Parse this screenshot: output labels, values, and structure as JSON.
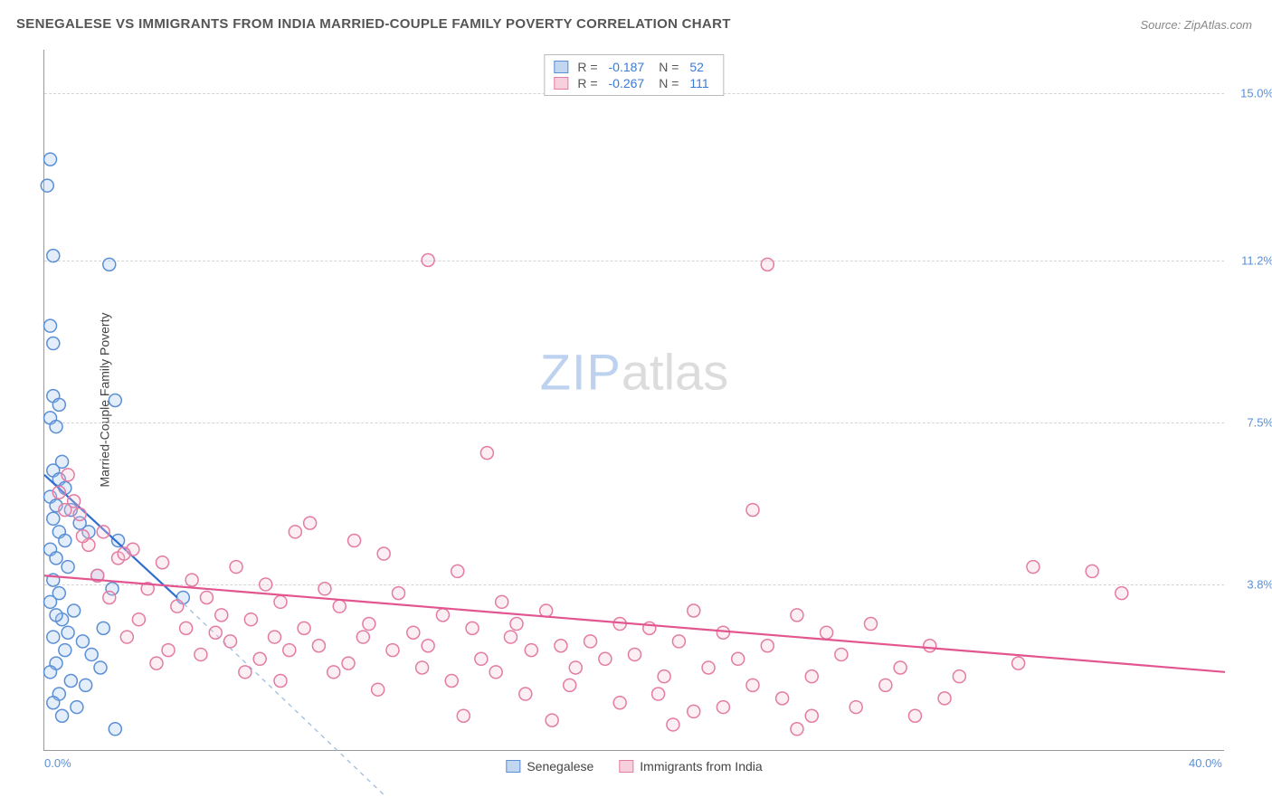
{
  "title": "SENEGALESE VS IMMIGRANTS FROM INDIA MARRIED-COUPLE FAMILY POVERTY CORRELATION CHART",
  "source": "Source: ZipAtlas.com",
  "ylabel": "Married-Couple Family Poverty",
  "watermark_zip": "ZIP",
  "watermark_atlas": "atlas",
  "chart": {
    "type": "scatter",
    "xlim": [
      0,
      40
    ],
    "ylim": [
      0,
      16
    ],
    "xticks": [
      {
        "pos": 0,
        "label": "0.0%"
      },
      {
        "pos": 40,
        "label": "40.0%"
      }
    ],
    "yticks": [
      {
        "pos": 3.8,
        "label": "3.8%"
      },
      {
        "pos": 7.5,
        "label": "7.5%"
      },
      {
        "pos": 11.2,
        "label": "11.2%"
      },
      {
        "pos": 15.0,
        "label": "15.0%"
      }
    ],
    "marker_radius": 7,
    "marker_stroke_width": 1.5,
    "marker_fill_opacity": 0.28,
    "series": [
      {
        "name": "Senegalese",
        "color_fill": "#9dc3ec",
        "color_stroke": "#5a8fd6",
        "trend": {
          "x1": 0,
          "y1": 6.3,
          "x2": 4.5,
          "y2": 3.5,
          "dash_ext_x": 11.5,
          "dash_ext_y": -1.0,
          "color": "#2f6fd0",
          "width": 2.2
        },
        "points": [
          [
            0.2,
            13.5
          ],
          [
            0.1,
            12.9
          ],
          [
            0.3,
            11.3
          ],
          [
            2.2,
            11.1
          ],
          [
            0.2,
            9.7
          ],
          [
            0.3,
            9.3
          ],
          [
            2.4,
            8.0
          ],
          [
            0.3,
            8.1
          ],
          [
            0.5,
            7.9
          ],
          [
            0.2,
            7.6
          ],
          [
            0.4,
            7.4
          ],
          [
            0.6,
            6.6
          ],
          [
            0.3,
            6.4
          ],
          [
            0.5,
            6.2
          ],
          [
            0.7,
            6.0
          ],
          [
            0.2,
            5.8
          ],
          [
            0.4,
            5.6
          ],
          [
            0.9,
            5.5
          ],
          [
            0.3,
            5.3
          ],
          [
            1.2,
            5.2
          ],
          [
            0.5,
            5.0
          ],
          [
            0.7,
            4.8
          ],
          [
            0.2,
            4.6
          ],
          [
            1.5,
            5.0
          ],
          [
            2.5,
            4.8
          ],
          [
            0.4,
            4.4
          ],
          [
            0.8,
            4.2
          ],
          [
            1.8,
            4.0
          ],
          [
            0.3,
            3.9
          ],
          [
            2.3,
            3.7
          ],
          [
            0.5,
            3.6
          ],
          [
            4.7,
            3.5
          ],
          [
            0.2,
            3.4
          ],
          [
            1.0,
            3.2
          ],
          [
            0.6,
            3.0
          ],
          [
            2.0,
            2.8
          ],
          [
            0.3,
            2.6
          ],
          [
            1.3,
            2.5
          ],
          [
            0.7,
            2.3
          ],
          [
            1.6,
            2.2
          ],
          [
            0.4,
            2.0
          ],
          [
            1.9,
            1.9
          ],
          [
            0.2,
            1.8
          ],
          [
            0.9,
            1.6
          ],
          [
            1.4,
            1.5
          ],
          [
            0.5,
            1.3
          ],
          [
            0.3,
            1.1
          ],
          [
            1.1,
            1.0
          ],
          [
            2.4,
            0.5
          ],
          [
            0.6,
            0.8
          ],
          [
            0.4,
            3.1
          ],
          [
            0.8,
            2.7
          ]
        ]
      },
      {
        "name": "Immigrants from India",
        "color_fill": "#f5c4d6",
        "color_stroke": "#e47ba3",
        "trend": {
          "x1": 0,
          "y1": 4.0,
          "x2": 40,
          "y2": 1.8,
          "color": "#e2558f",
          "width": 2.2
        },
        "points": [
          [
            13.0,
            11.2
          ],
          [
            24.5,
            11.1
          ],
          [
            15.0,
            6.8
          ],
          [
            0.8,
            6.3
          ],
          [
            0.5,
            5.9
          ],
          [
            1.0,
            5.7
          ],
          [
            0.7,
            5.5
          ],
          [
            1.2,
            5.4
          ],
          [
            24.0,
            5.5
          ],
          [
            9.0,
            5.2
          ],
          [
            8.5,
            5.0
          ],
          [
            2.0,
            5.0
          ],
          [
            10.5,
            4.8
          ],
          [
            1.5,
            4.7
          ],
          [
            3.0,
            4.6
          ],
          [
            11.5,
            4.5
          ],
          [
            2.5,
            4.4
          ],
          [
            4.0,
            4.3
          ],
          [
            6.5,
            4.2
          ],
          [
            14.0,
            4.1
          ],
          [
            33.5,
            4.2
          ],
          [
            35.5,
            4.1
          ],
          [
            1.8,
            4.0
          ],
          [
            5.0,
            3.9
          ],
          [
            7.5,
            3.8
          ],
          [
            3.5,
            3.7
          ],
          [
            9.5,
            3.7
          ],
          [
            12.0,
            3.6
          ],
          [
            36.5,
            3.6
          ],
          [
            2.2,
            3.5
          ],
          [
            5.5,
            3.5
          ],
          [
            8.0,
            3.4
          ],
          [
            15.5,
            3.4
          ],
          [
            4.5,
            3.3
          ],
          [
            10.0,
            3.3
          ],
          [
            17.0,
            3.2
          ],
          [
            22.0,
            3.2
          ],
          [
            6.0,
            3.1
          ],
          [
            13.5,
            3.1
          ],
          [
            25.5,
            3.1
          ],
          [
            3.2,
            3.0
          ],
          [
            7.0,
            3.0
          ],
          [
            11.0,
            2.9
          ],
          [
            16.0,
            2.9
          ],
          [
            19.5,
            2.9
          ],
          [
            28.0,
            2.9
          ],
          [
            4.8,
            2.8
          ],
          [
            8.8,
            2.8
          ],
          [
            14.5,
            2.8
          ],
          [
            20.5,
            2.8
          ],
          [
            5.8,
            2.7
          ],
          [
            12.5,
            2.7
          ],
          [
            23.0,
            2.7
          ],
          [
            26.5,
            2.7
          ],
          [
            2.8,
            2.6
          ],
          [
            7.8,
            2.6
          ],
          [
            10.8,
            2.6
          ],
          [
            15.8,
            2.6
          ],
          [
            18.5,
            2.5
          ],
          [
            21.5,
            2.5
          ],
          [
            6.3,
            2.5
          ],
          [
            9.3,
            2.4
          ],
          [
            13.0,
            2.4
          ],
          [
            17.5,
            2.4
          ],
          [
            24.5,
            2.4
          ],
          [
            30.0,
            2.4
          ],
          [
            4.2,
            2.3
          ],
          [
            8.3,
            2.3
          ],
          [
            11.8,
            2.3
          ],
          [
            16.5,
            2.3
          ],
          [
            20.0,
            2.2
          ],
          [
            27.0,
            2.2
          ],
          [
            5.3,
            2.2
          ],
          [
            7.3,
            2.1
          ],
          [
            14.8,
            2.1
          ],
          [
            19.0,
            2.1
          ],
          [
            23.5,
            2.1
          ],
          [
            33.0,
            2.0
          ],
          [
            3.8,
            2.0
          ],
          [
            10.3,
            2.0
          ],
          [
            12.8,
            1.9
          ],
          [
            18.0,
            1.9
          ],
          [
            22.5,
            1.9
          ],
          [
            29.0,
            1.9
          ],
          [
            6.8,
            1.8
          ],
          [
            9.8,
            1.8
          ],
          [
            15.3,
            1.8
          ],
          [
            21.0,
            1.7
          ],
          [
            26.0,
            1.7
          ],
          [
            31.0,
            1.7
          ],
          [
            8.0,
            1.6
          ],
          [
            13.8,
            1.6
          ],
          [
            17.8,
            1.5
          ],
          [
            24.0,
            1.5
          ],
          [
            28.5,
            1.5
          ],
          [
            11.3,
            1.4
          ],
          [
            16.3,
            1.3
          ],
          [
            20.8,
            1.3
          ],
          [
            25.0,
            1.2
          ],
          [
            30.5,
            1.2
          ],
          [
            19.5,
            1.1
          ],
          [
            23.0,
            1.0
          ],
          [
            27.5,
            1.0
          ],
          [
            22.0,
            0.9
          ],
          [
            26.0,
            0.8
          ],
          [
            29.5,
            0.8
          ],
          [
            14.2,
            0.8
          ],
          [
            17.2,
            0.7
          ],
          [
            21.3,
            0.6
          ],
          [
            25.5,
            0.5
          ],
          [
            1.3,
            4.9
          ],
          [
            2.7,
            4.5
          ]
        ]
      }
    ],
    "stats": [
      {
        "swatch": "blue",
        "R": "-0.187",
        "N": "52"
      },
      {
        "swatch": "pink",
        "R": "-0.267",
        "N": "111"
      }
    ],
    "legend": [
      {
        "swatch": "blue",
        "label": "Senegalese"
      },
      {
        "swatch": "pink",
        "label": "Immigrants from India"
      }
    ]
  }
}
